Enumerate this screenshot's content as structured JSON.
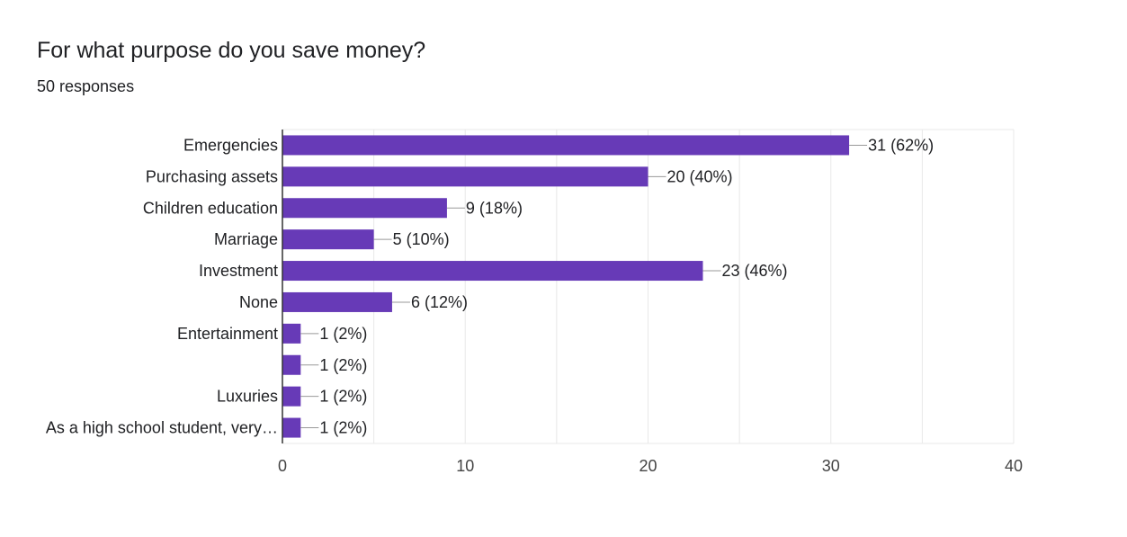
{
  "header": {
    "title": "For what purpose do you save money?",
    "subtitle": "50 responses"
  },
  "colors": {
    "bar": "#673ab7",
    "axis": "#333333",
    "grid": "#e8e8e8",
    "text": "#202124",
    "tick_text": "#444444",
    "leader": "#999999"
  },
  "chart_data": {
    "type": "bar",
    "orientation": "horizontal",
    "title": "For what purpose do you save money?",
    "subtitle": "50 responses",
    "categories": [
      "Emergencies",
      "Purchasing assets",
      "Children education",
      "Marriage",
      "Investment",
      "None",
      "Entertainment",
      "",
      "Luxuries",
      "As a high school student, very…"
    ],
    "values": [
      31,
      20,
      9,
      5,
      23,
      6,
      1,
      1,
      1,
      1
    ],
    "value_labels": [
      "31 (62%)",
      "20 (40%)",
      "9 (18%)",
      "5 (10%)",
      "23 (46%)",
      "6 (12%)",
      "1 (2%)",
      "1 (2%)",
      "1 (2%)",
      "1 (2%)"
    ],
    "xlim": [
      0,
      40
    ],
    "xticks": [
      0,
      10,
      20,
      30,
      40
    ],
    "grid": true,
    "xlabel": "",
    "ylabel": ""
  }
}
